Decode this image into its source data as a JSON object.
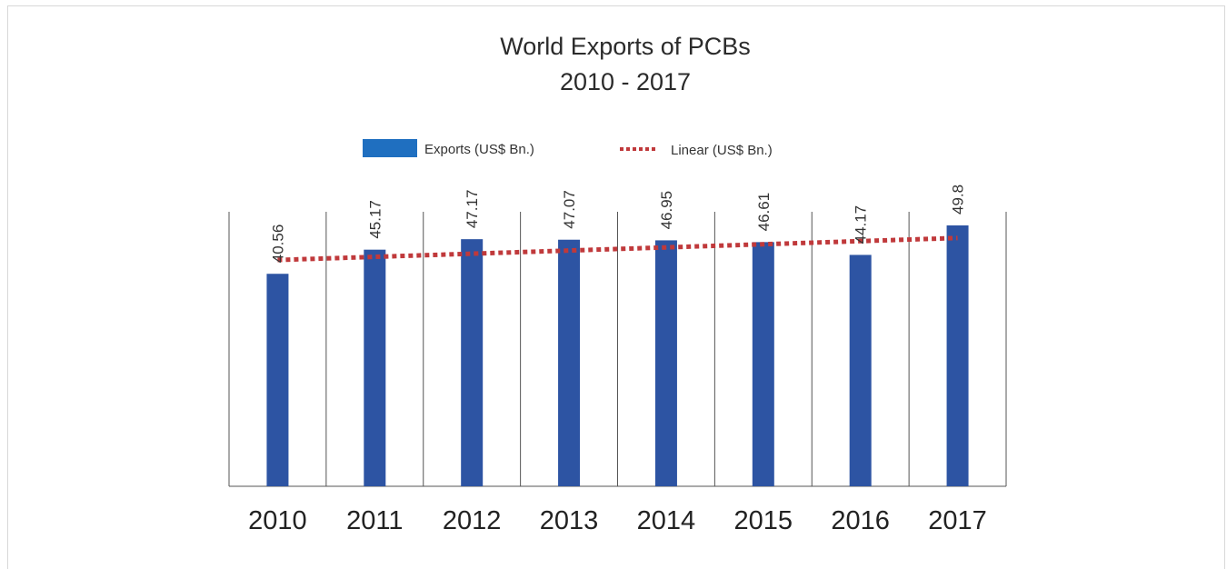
{
  "chart_data": {
    "type": "bar",
    "title": "World Exports of PCBs",
    "subtitle": "2010 - 2017",
    "categories": [
      "2010",
      "2011",
      "2012",
      "2013",
      "2014",
      "2015",
      "2016",
      "2017"
    ],
    "series": [
      {
        "name": "Exports (US$ Bn.)",
        "type": "bar",
        "values": [
          40.56,
          45.17,
          47.17,
          47.07,
          46.95,
          46.61,
          44.17,
          49.8
        ],
        "data_labels": [
          "40.56",
          "45.17",
          "47.17",
          "47.07",
          "46.95",
          "46.61",
          "44.17",
          "49.8"
        ]
      },
      {
        "name": "Linear (US$ Bn.)",
        "type": "line",
        "style": "dotted",
        "values": [
          43.2,
          43.8,
          44.4,
          45.0,
          45.6,
          46.2,
          46.8,
          47.4
        ]
      }
    ],
    "ylim": [
      0,
      52.4
    ],
    "grid": "vertical category dividers",
    "legend_position": "top",
    "colors": {
      "bars": "#2d54a3",
      "trend": "#c0393b",
      "legend_bar": "#1f6fc0",
      "grid": "#555555"
    }
  }
}
